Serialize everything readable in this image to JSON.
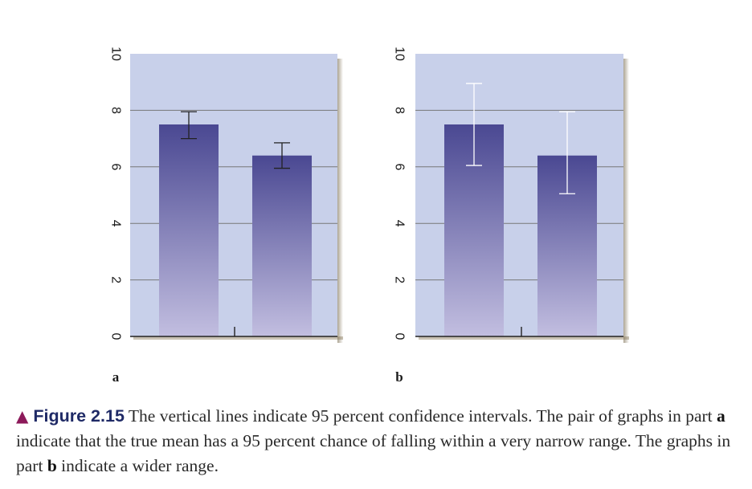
{
  "chart_data": [
    {
      "type": "bar",
      "panel": "a",
      "categories": [
        "",
        ""
      ],
      "values": [
        7.5,
        6.4
      ],
      "error": [
        [
          7.0,
          7.95
        ],
        [
          5.95,
          6.85
        ]
      ],
      "ylim": [
        0,
        10
      ],
      "yticks": [
        "0",
        "2",
        "4",
        "6",
        "8",
        "10"
      ],
      "grid": true,
      "title": "",
      "xlabel": "",
      "ylabel": ""
    },
    {
      "type": "bar",
      "panel": "b",
      "categories": [
        "",
        ""
      ],
      "values": [
        7.5,
        6.4
      ],
      "error": [
        [
          6.05,
          8.95
        ],
        [
          5.05,
          7.95
        ]
      ],
      "ylim": [
        0,
        10
      ],
      "yticks": [
        "0",
        "2",
        "4",
        "6",
        "8",
        "10"
      ],
      "grid": true,
      "title": "",
      "xlabel": "",
      "ylabel": ""
    }
  ],
  "colors": {
    "plot_background": "#c8d0ea",
    "bar_top": "#4a4892",
    "bar_bottom": "#c2bee0",
    "grid": "#777777",
    "error_bar_a": "#222222",
    "error_bar_b": "#ffffff",
    "caption_marker": "#8c1a5a",
    "caption_label": "#1f2a66"
  },
  "caption": {
    "marker_icon": "triangle-up-icon",
    "marker": "▲",
    "label": "Figure 2.15",
    "text_1": " The vertical lines indicate 95 percent confidence intervals. The pair of graphs in part ",
    "part_a": "a",
    "text_2": " indicate that the true mean has a 95 percent chance of falling within a very narrow range. The graphs in part ",
    "part_b": "b",
    "text_3": " indicate a wider range."
  }
}
